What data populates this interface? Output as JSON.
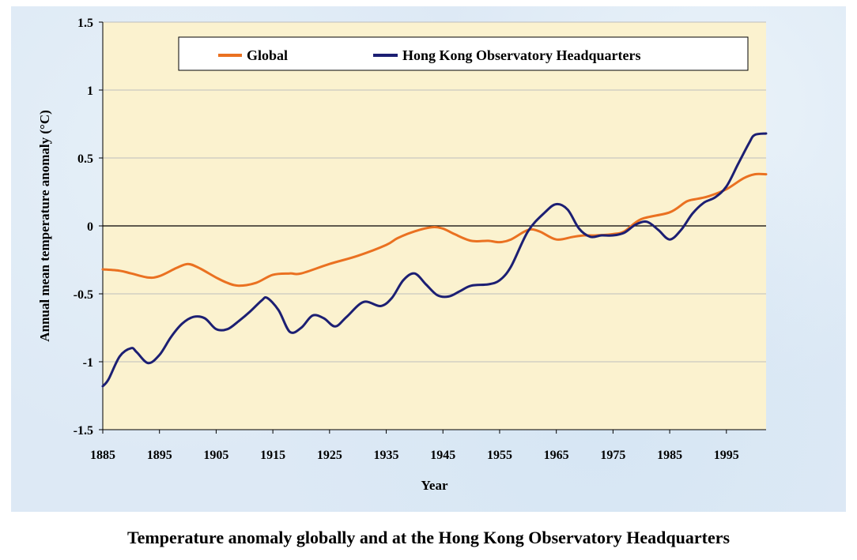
{
  "caption": "Temperature anomaly globally and at the Hong Kong Observatory Headquarters",
  "chart_data": {
    "type": "line",
    "title": "",
    "xlabel": "Year",
    "ylabel": "Annual mean temperature anomaly (°C)",
    "xlim": [
      1885,
      2002
    ],
    "ylim": [
      -1.5,
      1.5
    ],
    "xticks": [
      "1885",
      "1895",
      "1905",
      "1915",
      "1925",
      "1935",
      "1945",
      "1955",
      "1965",
      "1975",
      "1985",
      "1995"
    ],
    "yticks": [
      "1.5",
      "1",
      "0.5",
      "0",
      "-0.5",
      "-1",
      "-1.5"
    ],
    "grid": true,
    "legend": "top",
    "colors": {
      "plot_bg": "#fbf2cf",
      "grid": "#bdbdbd",
      "zero_line": "#000000"
    },
    "series": [
      {
        "name": "Global",
        "color": "#ea7121",
        "x": [
          1885,
          1888,
          1890,
          1893,
          1895,
          1898,
          1900,
          1902,
          1905,
          1907,
          1909,
          1912,
          1915,
          1918,
          1920,
          1925,
          1930,
          1935,
          1937,
          1940,
          1943,
          1945,
          1947,
          1950,
          1953,
          1955,
          1957,
          1960,
          1962,
          1965,
          1968,
          1970,
          1972,
          1975,
          1977,
          1980,
          1985,
          1988,
          1990,
          1992,
          1995,
          1998,
          2000,
          2002
        ],
        "y": [
          -0.32,
          -0.33,
          -0.35,
          -0.38,
          -0.37,
          -0.31,
          -0.28,
          -0.31,
          -0.38,
          -0.42,
          -0.44,
          -0.42,
          -0.36,
          -0.35,
          -0.35,
          -0.28,
          -0.22,
          -0.14,
          -0.09,
          -0.04,
          -0.01,
          -0.02,
          -0.06,
          -0.11,
          -0.11,
          -0.12,
          -0.1,
          -0.03,
          -0.04,
          -0.1,
          -0.08,
          -0.07,
          -0.07,
          -0.06,
          -0.04,
          0.05,
          0.1,
          0.18,
          0.2,
          0.22,
          0.27,
          0.35,
          0.38,
          0.38
        ]
      },
      {
        "name": "Hong Kong Observatory Headquarters",
        "color": "#1c1f73",
        "x": [
          1885,
          1886,
          1888,
          1890,
          1891,
          1893,
          1895,
          1897,
          1899,
          1901,
          1903,
          1905,
          1907,
          1909,
          1911,
          1913,
          1914,
          1916,
          1918,
          1920,
          1922,
          1924,
          1926,
          1928,
          1931,
          1934,
          1936,
          1938,
          1940,
          1942,
          1944,
          1946,
          1948,
          1950,
          1953,
          1955,
          1957,
          1960,
          1963,
          1965,
          1967,
          1969,
          1971,
          1973,
          1975,
          1977,
          1979,
          1981,
          1983,
          1985,
          1987,
          1989,
          1991,
          1993,
          1995,
          1997,
          1999,
          2000,
          2002
        ],
        "y": [
          -1.18,
          -1.13,
          -0.96,
          -0.9,
          -0.93,
          -1.01,
          -0.95,
          -0.82,
          -0.72,
          -0.67,
          -0.68,
          -0.76,
          -0.76,
          -0.7,
          -0.63,
          -0.55,
          -0.53,
          -0.62,
          -0.78,
          -0.75,
          -0.66,
          -0.68,
          -0.74,
          -0.67,
          -0.56,
          -0.59,
          -0.53,
          -0.4,
          -0.35,
          -0.43,
          -0.51,
          -0.52,
          -0.48,
          -0.44,
          -0.43,
          -0.4,
          -0.3,
          -0.04,
          0.1,
          0.16,
          0.12,
          -0.02,
          -0.08,
          -0.07,
          -0.07,
          -0.05,
          0.01,
          0.03,
          -0.03,
          -0.1,
          -0.03,
          0.09,
          0.17,
          0.21,
          0.29,
          0.45,
          0.61,
          0.67,
          0.68
        ]
      }
    ]
  }
}
